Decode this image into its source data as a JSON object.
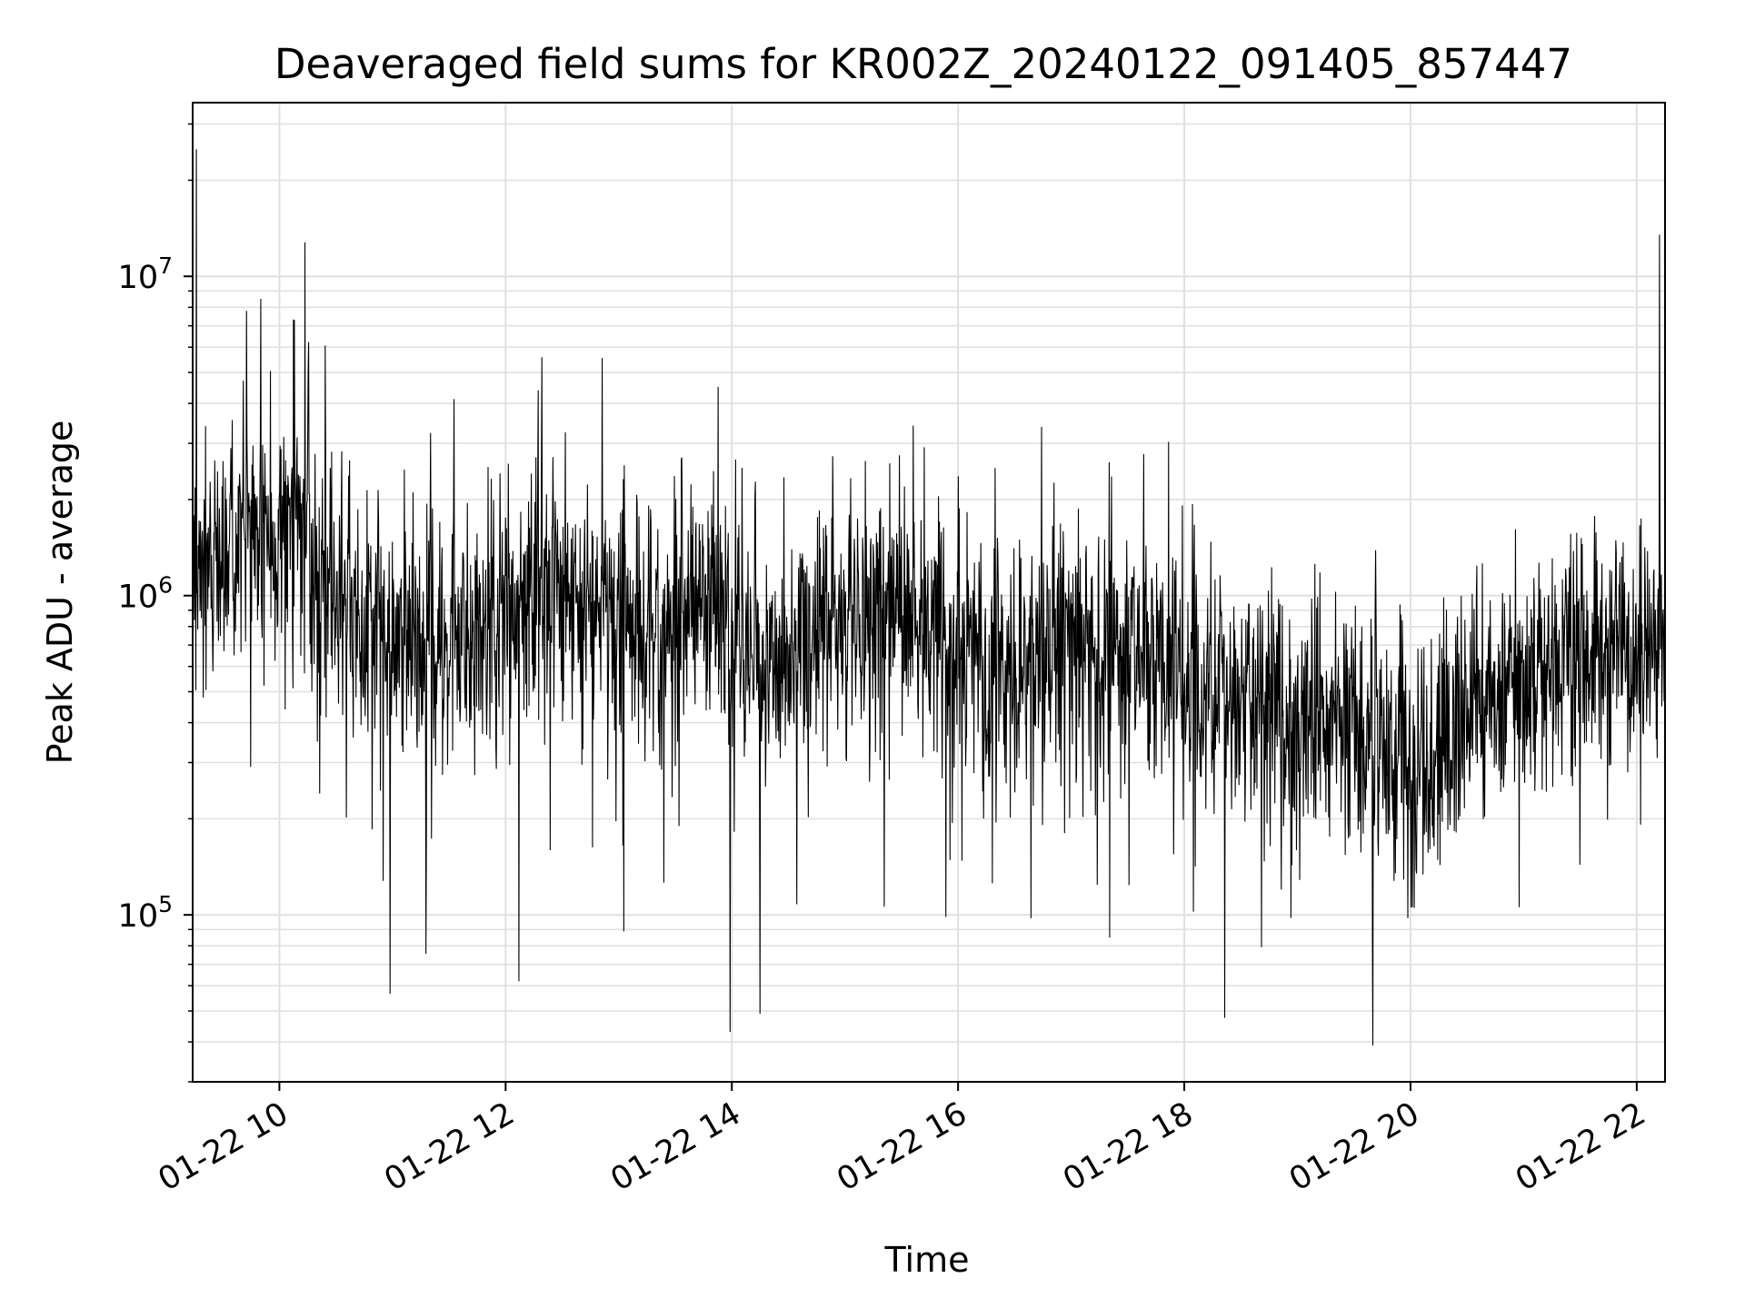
{
  "chart_data": {
    "type": "line",
    "title": "Deaveraged field sums for KR002Z_20240122_091405_857447",
    "xlabel": "Time",
    "ylabel": "Peak ADU - average",
    "yscale": "log",
    "grid": true,
    "xlim": [
      "2024-01-22 09:14",
      "2024-01-22 22:15"
    ],
    "ylim": [
      30000,
      35000000
    ],
    "x_ticks": [
      {
        "value": "2024-01-22 10:00",
        "label": "01-22 10"
      },
      {
        "value": "2024-01-22 12:00",
        "label": "01-22 12"
      },
      {
        "value": "2024-01-22 14:00",
        "label": "01-22 14"
      },
      {
        "value": "2024-01-22 16:00",
        "label": "01-22 16"
      },
      {
        "value": "2024-01-22 18:00",
        "label": "01-22 18"
      },
      {
        "value": "2024-01-22 20:00",
        "label": "01-22 20"
      },
      {
        "value": "2024-01-22 22:00",
        "label": "01-22 22"
      }
    ],
    "y_ticks": [
      {
        "value": 100000,
        "base": "10",
        "exp": "5"
      },
      {
        "value": 1000000,
        "base": "10",
        "exp": "6"
      },
      {
        "value": 10000000,
        "base": "10",
        "exp": "7"
      }
    ],
    "line_color": "#000000",
    "series": [
      {
        "x": [
          "2024-01-22 09:14",
          "2024-01-22 09:30",
          "2024-01-22 09:45",
          "2024-01-22 10:00",
          "2024-01-22 10:15",
          "2024-01-22 10:30",
          "2024-01-22 10:45",
          "2024-01-22 11:00",
          "2024-01-22 11:15",
          "2024-01-22 11:30",
          "2024-01-22 11:45",
          "2024-01-22 12:00",
          "2024-01-22 12:15",
          "2024-01-22 12:30",
          "2024-01-22 12:45",
          "2024-01-22 13:00",
          "2024-01-22 13:15",
          "2024-01-22 13:30",
          "2024-01-22 13:45",
          "2024-01-22 14:00",
          "2024-01-22 14:15",
          "2024-01-22 14:30",
          "2024-01-22 14:45",
          "2024-01-22 15:00",
          "2024-01-22 15:15",
          "2024-01-22 15:30",
          "2024-01-22 15:45",
          "2024-01-22 16:00",
          "2024-01-22 16:15",
          "2024-01-22 16:30",
          "2024-01-22 16:45",
          "2024-01-22 17:00",
          "2024-01-22 17:15",
          "2024-01-22 17:30",
          "2024-01-22 17:45",
          "2024-01-22 18:00",
          "2024-01-22 18:15",
          "2024-01-22 18:30",
          "2024-01-22 18:45",
          "2024-01-22 19:00",
          "2024-01-22 19:15",
          "2024-01-22 19:30",
          "2024-01-22 19:45",
          "2024-01-22 20:00",
          "2024-01-22 20:15",
          "2024-01-22 20:30",
          "2024-01-22 20:45",
          "2024-01-22 21:00",
          "2024-01-22 21:15",
          "2024-01-22 21:30",
          "2024-01-22 21:45",
          "2024-01-22 22:00",
          "2024-01-22 22:15"
        ],
        "values": [
          1100000,
          1400000,
          1700000,
          1700000,
          1500000,
          1100000,
          850000,
          700000,
          680000,
          700000,
          780000,
          900000,
          1000000,
          1050000,
          1000000,
          900000,
          800000,
          850000,
          1050000,
          700000,
          650000,
          700000,
          750000,
          850000,
          950000,
          900000,
          800000,
          650000,
          550000,
          600000,
          650000,
          750000,
          700000,
          650000,
          580000,
          520000,
          500000,
          500000,
          440000,
          400000,
          400000,
          380000,
          300000,
          260000,
          300000,
          400000,
          550000,
          600000,
          600000,
          650000,
          650000,
          650000,
          650000
        ]
      }
    ],
    "notable_points": [
      {
        "x": "2024-01-22 09:16",
        "y": 25000000
      },
      {
        "x": "2024-01-22 09:50",
        "y": 8500000
      },
      {
        "x": "2024-01-22 10:08",
        "y": 7300000
      },
      {
        "x": "2024-01-22 12:07",
        "y": 62000
      },
      {
        "x": "2024-01-22 13:59",
        "y": 43000
      },
      {
        "x": "2024-01-22 14:15",
        "y": 49000
      },
      {
        "x": "2024-01-22 19:40",
        "y": 39000
      },
      {
        "x": "2024-01-22 22:12",
        "y": 13500000
      }
    ]
  }
}
